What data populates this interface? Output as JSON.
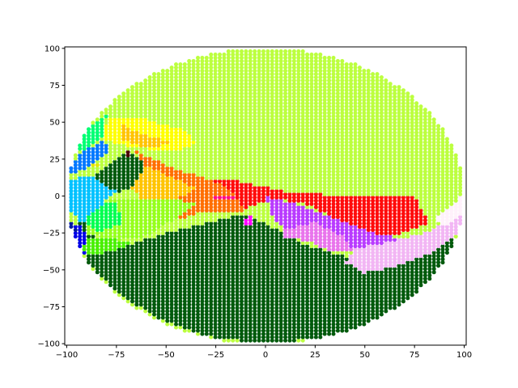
{
  "chart_data": {
    "type": "scatter",
    "title": "",
    "xlabel": "",
    "ylabel": "",
    "xlim": [
      -101,
      101
    ],
    "ylim": [
      -101,
      101
    ],
    "grid": false,
    "x_ticks": [
      -100,
      -75,
      -50,
      -25,
      0,
      25,
      50,
      75,
      100
    ],
    "y_ticks": [
      -100,
      -75,
      -50,
      -25,
      0,
      25,
      50,
      75,
      100
    ],
    "x_tick_labels": [
      "−100",
      "−75",
      "−50",
      "−25",
      "0",
      "25",
      "50",
      "75",
      "100"
    ],
    "y_tick_labels": [
      "−100",
      "−75",
      "−50",
      "−25",
      "0",
      "25",
      "50",
      "75",
      "100"
    ],
    "marker_radius": 2.5,
    "disk_radius": 100,
    "regions": [
      {
        "color": "#bcff3f",
        "polygon": [
          [
            -100,
            0
          ],
          [
            -88,
            44
          ],
          [
            -70,
            70
          ],
          [
            -45,
            88
          ],
          [
            -10,
            100
          ],
          [
            20,
            98
          ],
          [
            50,
            87
          ],
          [
            72,
            70
          ],
          [
            88,
            48
          ],
          [
            97,
            20
          ],
          [
            100,
            0
          ],
          [
            100,
            -2
          ],
          [
            40,
            0
          ],
          [
            -20,
            12
          ],
          [
            -60,
            27
          ],
          [
            -80,
            40
          ],
          [
            -92,
            25
          ]
        ]
      },
      {
        "color": "#005a0c",
        "polygon": [
          [
            -92,
            -10
          ],
          [
            -95,
            -25
          ],
          [
            -90,
            -45
          ],
          [
            -75,
            -65
          ],
          [
            -55,
            -82
          ],
          [
            -30,
            -95
          ],
          [
            0,
            -100
          ],
          [
            30,
            -96
          ],
          [
            55,
            -85
          ],
          [
            75,
            -70
          ],
          [
            90,
            -45
          ],
          [
            96,
            -28
          ],
          [
            70,
            -38
          ],
          [
            50,
            -45
          ],
          [
            20,
            -33
          ],
          [
            -10,
            -12
          ],
          [
            -50,
            -25
          ],
          [
            -75,
            -35
          ],
          [
            -90,
            -25
          ]
        ]
      },
      {
        "color": "#005a0c",
        "polygon": [
          [
            -95,
            5
          ],
          [
            -70,
            30
          ],
          [
            -62,
            25
          ],
          [
            -58,
            15
          ],
          [
            -72,
            3
          ],
          [
            -90,
            1
          ]
        ]
      },
      {
        "color": "#ff0c0c",
        "polygon": [
          [
            -45,
            12
          ],
          [
            -20,
            12
          ],
          [
            10,
            3
          ],
          [
            40,
            0
          ],
          [
            75,
            0
          ],
          [
            82,
            -18
          ],
          [
            60,
            -30
          ],
          [
            40,
            -18
          ],
          [
            20,
            -5
          ],
          [
            5,
            -2
          ],
          [
            -15,
            -10
          ],
          [
            -25,
            -3
          ],
          [
            -45,
            4
          ]
        ]
      },
      {
        "color": "#ff6f00",
        "polygon": [
          [
            -65,
            30
          ],
          [
            -45,
            18
          ],
          [
            -30,
            12
          ],
          [
            -18,
            5
          ],
          [
            -10,
            -10
          ],
          [
            -30,
            -10
          ],
          [
            -55,
            -20
          ],
          [
            -62,
            -28
          ],
          [
            -50,
            -15
          ],
          [
            -40,
            -5
          ],
          [
            -55,
            10
          ]
        ]
      },
      {
        "color": "#ffc400",
        "polygon": [
          [
            -60,
            20
          ],
          [
            -45,
            12
          ],
          [
            -35,
            5
          ],
          [
            -45,
            -2
          ],
          [
            -62,
            -2
          ],
          [
            -68,
            5
          ]
        ]
      },
      {
        "color": "#ffff00",
        "polygon": [
          [
            -85,
            40
          ],
          [
            -78,
            53
          ],
          [
            -65,
            54
          ],
          [
            -50,
            48
          ],
          [
            -40,
            45
          ],
          [
            -35,
            35
          ],
          [
            -45,
            30
          ],
          [
            -60,
            32
          ],
          [
            -75,
            35
          ]
        ]
      },
      {
        "color": "#ffc400",
        "polygon": [
          [
            -72,
            48
          ],
          [
            -62,
            42
          ],
          [
            -50,
            38
          ],
          [
            -48,
            35
          ],
          [
            -62,
            33
          ],
          [
            -72,
            38
          ]
        ]
      },
      {
        "color": "#97ff1d",
        "polygon": [
          [
            -88,
            -5
          ],
          [
            -75,
            -2
          ],
          [
            -60,
            -2
          ],
          [
            -45,
            -2
          ],
          [
            -35,
            -5
          ],
          [
            -45,
            -15
          ],
          [
            -60,
            -27
          ],
          [
            -75,
            -30
          ],
          [
            -90,
            -25
          ],
          [
            -92,
            -12
          ]
        ]
      },
      {
        "color": "#00ff50",
        "polygon": [
          [
            -90,
            -5
          ],
          [
            -75,
            -5
          ],
          [
            -72,
            -18
          ],
          [
            -85,
            -25
          ],
          [
            -92,
            -15
          ]
        ]
      },
      {
        "color": "#00c2ff",
        "polygon": [
          [
            -98,
            10
          ],
          [
            -90,
            15
          ],
          [
            -75,
            3
          ],
          [
            -82,
            -5
          ],
          [
            -92,
            -18
          ],
          [
            -99,
            -10
          ]
        ]
      },
      {
        "color": "#0078ff",
        "polygon": [
          [
            -98,
            22
          ],
          [
            -92,
            30
          ],
          [
            -82,
            38
          ],
          [
            -78,
            30
          ],
          [
            -88,
            20
          ],
          [
            -98,
            15
          ]
        ]
      },
      {
        "color": "#00ff73",
        "polygon": [
          [
            -95,
            40
          ],
          [
            -88,
            48
          ],
          [
            -80,
            55
          ],
          [
            -82,
            40
          ],
          [
            -90,
            32
          ],
          [
            -96,
            30
          ]
        ]
      },
      {
        "color": "#0000e6",
        "polygon": [
          [
            -98,
            -18
          ],
          [
            -93,
            -40
          ],
          [
            -88,
            -38
          ],
          [
            -92,
            -20
          ]
        ]
      },
      {
        "color": "#001aa0",
        "polygon": [
          [
            -99,
            -14
          ],
          [
            -95,
            -22
          ],
          [
            -97,
            -30
          ],
          [
            -99,
            -22
          ]
        ]
      },
      {
        "color": "#49f000",
        "polygon": [
          [
            -90,
            -28
          ],
          [
            -78,
            -28
          ],
          [
            -68,
            -32
          ],
          [
            -72,
            -35
          ],
          [
            -85,
            -40
          ],
          [
            -92,
            -38
          ]
        ]
      },
      {
        "color": "#b93cff",
        "polygon": [
          [
            0,
            0
          ],
          [
            15,
            -5
          ],
          [
            35,
            -15
          ],
          [
            55,
            -25
          ],
          [
            80,
            -32
          ],
          [
            78,
            -42
          ],
          [
            55,
            -42
          ],
          [
            40,
            -35
          ],
          [
            20,
            -28
          ],
          [
            5,
            -18
          ]
        ]
      },
      {
        "color": "#e975ec",
        "polygon": [
          [
            10,
            -22
          ],
          [
            25,
            -18
          ],
          [
            40,
            -28
          ],
          [
            45,
            -38
          ],
          [
            35,
            -38
          ],
          [
            20,
            -30
          ],
          [
            10,
            -28
          ]
        ]
      },
      {
        "color": "#f2b6f4",
        "polygon": [
          [
            45,
            -35
          ],
          [
            60,
            -32
          ],
          [
            80,
            -25
          ],
          [
            95,
            -15
          ],
          [
            100,
            -8
          ],
          [
            98,
            -25
          ],
          [
            85,
            -38
          ],
          [
            65,
            -48
          ],
          [
            50,
            -52
          ],
          [
            40,
            -45
          ]
        ]
      },
      {
        "color": "#fff1fb",
        "polygon": [
          [
            85,
            -15
          ],
          [
            95,
            -5
          ],
          [
            100,
            5
          ],
          [
            100,
            -12
          ],
          [
            90,
            -20
          ]
        ]
      },
      {
        "color": "#ff0c8c",
        "polygon": [
          [
            -28,
            -2
          ],
          [
            -25,
            0
          ],
          [
            -18,
            1
          ],
          [
            -15,
            -2
          ],
          [
            -18,
            -3
          ],
          [
            -25,
            -3
          ]
        ]
      },
      {
        "color": "#ff00ff",
        "polygon": [
          [
            -12,
            -17
          ],
          [
            -8,
            -13
          ],
          [
            -6,
            -18
          ],
          [
            -10,
            -20
          ]
        ]
      },
      {
        "color": "#e6e600",
        "polygon": [
          [
            -88,
            20
          ],
          [
            -85,
            23
          ],
          [
            -82,
            24
          ],
          [
            -85,
            19
          ]
        ]
      },
      {
        "color": "#4a0000",
        "polygon": [
          [
            -72,
            29
          ],
          [
            -69,
            31
          ],
          [
            -67,
            28
          ],
          [
            -70,
            27
          ]
        ]
      }
    ]
  }
}
